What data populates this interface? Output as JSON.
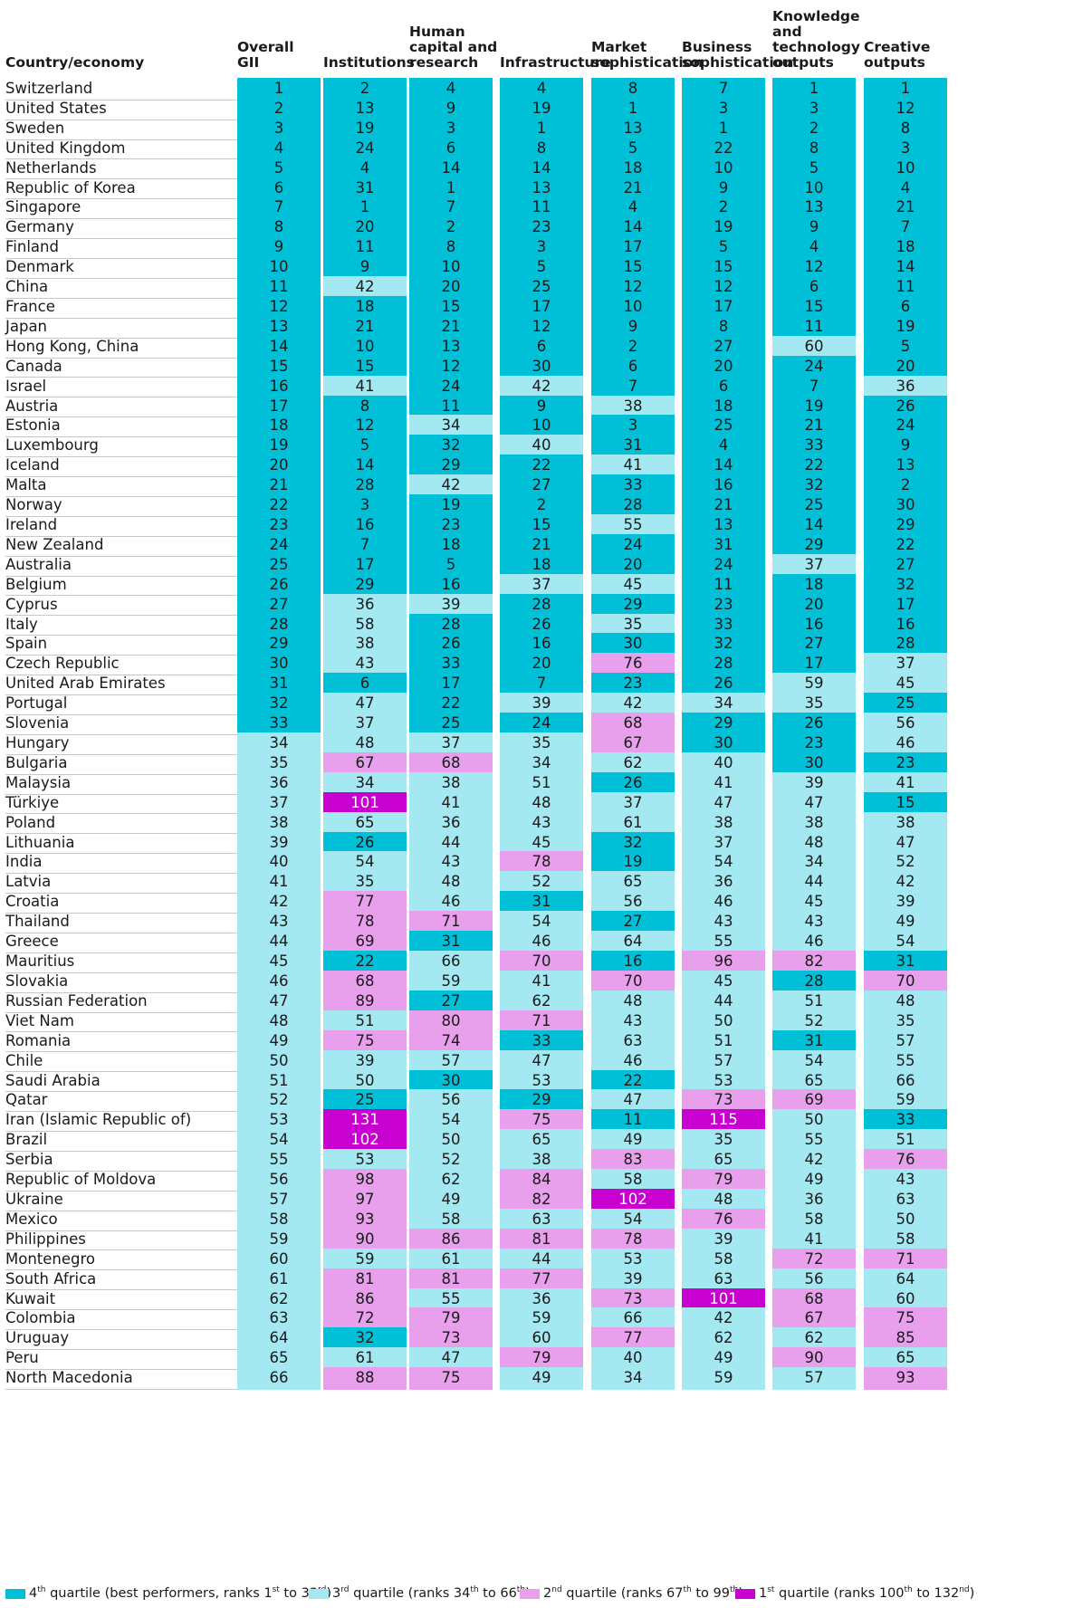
{
  "chart_data": {
    "type": "table",
    "columns": [
      "Country/economy",
      "Overall GII",
      "Institutions",
      "Human capital and research",
      "Infrastructure",
      "Market sophistication",
      "Business sophistication",
      "Knowledge and technology outputs",
      "Creative outputs"
    ],
    "header_lines": [
      [
        "Country/economy"
      ],
      [
        "Overall",
        "GII"
      ],
      [
        "Institutions"
      ],
      [
        "Human",
        "capital and",
        "research"
      ],
      [
        "Infrastructure"
      ],
      [
        "Market",
        "sophistication"
      ],
      [
        "Business",
        "sophistication"
      ],
      [
        "Knowledge",
        "and",
        "technology",
        "outputs"
      ],
      [
        "Creative",
        "outputs"
      ]
    ],
    "rows": [
      {
        "country": "Switzerland",
        "ranks": [
          1,
          2,
          4,
          4,
          8,
          7,
          1,
          1
        ]
      },
      {
        "country": "United States",
        "ranks": [
          2,
          13,
          9,
          19,
          1,
          3,
          3,
          12
        ]
      },
      {
        "country": "Sweden",
        "ranks": [
          3,
          19,
          3,
          1,
          13,
          1,
          2,
          8
        ]
      },
      {
        "country": "United Kingdom",
        "ranks": [
          4,
          24,
          6,
          8,
          5,
          22,
          8,
          3
        ]
      },
      {
        "country": "Netherlands",
        "ranks": [
          5,
          4,
          14,
          14,
          18,
          10,
          5,
          10
        ]
      },
      {
        "country": "Republic of Korea",
        "ranks": [
          6,
          31,
          1,
          13,
          21,
          9,
          10,
          4
        ]
      },
      {
        "country": "Singapore",
        "ranks": [
          7,
          1,
          7,
          11,
          4,
          2,
          13,
          21
        ]
      },
      {
        "country": "Germany",
        "ranks": [
          8,
          20,
          2,
          23,
          14,
          19,
          9,
          7
        ]
      },
      {
        "country": "Finland",
        "ranks": [
          9,
          11,
          8,
          3,
          17,
          5,
          4,
          18
        ]
      },
      {
        "country": "Denmark",
        "ranks": [
          10,
          9,
          10,
          5,
          15,
          15,
          12,
          14
        ]
      },
      {
        "country": "China",
        "ranks": [
          11,
          42,
          20,
          25,
          12,
          12,
          6,
          11
        ]
      },
      {
        "country": "France",
        "ranks": [
          12,
          18,
          15,
          17,
          10,
          17,
          15,
          6
        ]
      },
      {
        "country": "Japan",
        "ranks": [
          13,
          21,
          21,
          12,
          9,
          8,
          11,
          19
        ]
      },
      {
        "country": "Hong Kong, China",
        "ranks": [
          14,
          10,
          13,
          6,
          2,
          27,
          60,
          5
        ]
      },
      {
        "country": "Canada",
        "ranks": [
          15,
          15,
          12,
          30,
          6,
          20,
          24,
          20
        ]
      },
      {
        "country": "Israel",
        "ranks": [
          16,
          41,
          24,
          42,
          7,
          6,
          7,
          36
        ]
      },
      {
        "country": "Austria",
        "ranks": [
          17,
          8,
          11,
          9,
          38,
          18,
          19,
          26
        ]
      },
      {
        "country": "Estonia",
        "ranks": [
          18,
          12,
          34,
          10,
          3,
          25,
          21,
          24
        ]
      },
      {
        "country": "Luxembourg",
        "ranks": [
          19,
          5,
          32,
          40,
          31,
          4,
          33,
          9
        ]
      },
      {
        "country": "Iceland",
        "ranks": [
          20,
          14,
          29,
          22,
          41,
          14,
          22,
          13
        ]
      },
      {
        "country": "Malta",
        "ranks": [
          21,
          28,
          42,
          27,
          33,
          16,
          32,
          2
        ]
      },
      {
        "country": "Norway",
        "ranks": [
          22,
          3,
          19,
          2,
          28,
          21,
          25,
          30
        ]
      },
      {
        "country": "Ireland",
        "ranks": [
          23,
          16,
          23,
          15,
          55,
          13,
          14,
          29
        ]
      },
      {
        "country": "New Zealand",
        "ranks": [
          24,
          7,
          18,
          21,
          24,
          31,
          29,
          22
        ]
      },
      {
        "country": "Australia",
        "ranks": [
          25,
          17,
          5,
          18,
          20,
          24,
          37,
          27
        ]
      },
      {
        "country": "Belgium",
        "ranks": [
          26,
          29,
          16,
          37,
          45,
          11,
          18,
          32
        ]
      },
      {
        "country": "Cyprus",
        "ranks": [
          27,
          36,
          39,
          28,
          29,
          23,
          20,
          17
        ]
      },
      {
        "country": "Italy",
        "ranks": [
          28,
          58,
          28,
          26,
          35,
          33,
          16,
          16
        ]
      },
      {
        "country": "Spain",
        "ranks": [
          29,
          38,
          26,
          16,
          30,
          32,
          27,
          28
        ]
      },
      {
        "country": "Czech Republic",
        "ranks": [
          30,
          43,
          33,
          20,
          76,
          28,
          17,
          37
        ]
      },
      {
        "country": "United Arab Emirates",
        "ranks": [
          31,
          6,
          17,
          7,
          23,
          26,
          59,
          45
        ]
      },
      {
        "country": "Portugal",
        "ranks": [
          32,
          47,
          22,
          39,
          42,
          34,
          35,
          25
        ]
      },
      {
        "country": "Slovenia",
        "ranks": [
          33,
          37,
          25,
          24,
          68,
          29,
          26,
          56
        ]
      },
      {
        "country": "Hungary",
        "ranks": [
          34,
          48,
          37,
          35,
          67,
          30,
          23,
          46
        ]
      },
      {
        "country": "Bulgaria",
        "ranks": [
          35,
          67,
          68,
          34,
          62,
          40,
          30,
          23
        ]
      },
      {
        "country": "Malaysia",
        "ranks": [
          36,
          34,
          38,
          51,
          26,
          41,
          39,
          41
        ]
      },
      {
        "country": "Türkiye",
        "ranks": [
          37,
          101,
          41,
          48,
          37,
          47,
          47,
          15
        ]
      },
      {
        "country": "Poland",
        "ranks": [
          38,
          65,
          36,
          43,
          61,
          38,
          38,
          38
        ]
      },
      {
        "country": "Lithuania",
        "ranks": [
          39,
          26,
          44,
          45,
          32,
          37,
          48,
          47
        ]
      },
      {
        "country": "India",
        "ranks": [
          40,
          54,
          43,
          78,
          19,
          54,
          34,
          52
        ]
      },
      {
        "country": "Latvia",
        "ranks": [
          41,
          35,
          48,
          52,
          65,
          36,
          44,
          42
        ]
      },
      {
        "country": "Croatia",
        "ranks": [
          42,
          77,
          46,
          31,
          56,
          46,
          45,
          39
        ]
      },
      {
        "country": "Thailand",
        "ranks": [
          43,
          78,
          71,
          54,
          27,
          43,
          43,
          49
        ]
      },
      {
        "country": "Greece",
        "ranks": [
          44,
          69,
          31,
          46,
          64,
          55,
          46,
          54
        ]
      },
      {
        "country": "Mauritius",
        "ranks": [
          45,
          22,
          66,
          70,
          16,
          96,
          82,
          31
        ]
      },
      {
        "country": "Slovakia",
        "ranks": [
          46,
          68,
          59,
          41,
          70,
          45,
          28,
          70
        ]
      },
      {
        "country": "Russian Federation",
        "ranks": [
          47,
          89,
          27,
          62,
          48,
          44,
          51,
          48
        ]
      },
      {
        "country": "Viet Nam",
        "ranks": [
          48,
          51,
          80,
          71,
          43,
          50,
          52,
          35
        ]
      },
      {
        "country": "Romania",
        "ranks": [
          49,
          75,
          74,
          33,
          63,
          51,
          31,
          57
        ]
      },
      {
        "country": "Chile",
        "ranks": [
          50,
          39,
          57,
          47,
          46,
          57,
          54,
          55
        ]
      },
      {
        "country": "Saudi Arabia",
        "ranks": [
          51,
          50,
          30,
          53,
          22,
          53,
          65,
          66
        ]
      },
      {
        "country": "Qatar",
        "ranks": [
          52,
          25,
          56,
          29,
          47,
          73,
          69,
          59
        ]
      },
      {
        "country": "Iran (Islamic Republic of)",
        "ranks": [
          53,
          131,
          54,
          75,
          11,
          115,
          50,
          33
        ]
      },
      {
        "country": "Brazil",
        "ranks": [
          54,
          102,
          50,
          65,
          49,
          35,
          55,
          51
        ]
      },
      {
        "country": "Serbia",
        "ranks": [
          55,
          53,
          52,
          38,
          83,
          65,
          42,
          76
        ]
      },
      {
        "country": "Republic of Moldova",
        "ranks": [
          56,
          98,
          62,
          84,
          58,
          79,
          49,
          43
        ]
      },
      {
        "country": "Ukraine",
        "ranks": [
          57,
          97,
          49,
          82,
          102,
          48,
          36,
          63
        ]
      },
      {
        "country": "Mexico",
        "ranks": [
          58,
          93,
          58,
          63,
          54,
          76,
          58,
          50
        ]
      },
      {
        "country": "Philippines",
        "ranks": [
          59,
          90,
          86,
          81,
          78,
          39,
          41,
          58
        ]
      },
      {
        "country": "Montenegro",
        "ranks": [
          60,
          59,
          61,
          44,
          53,
          58,
          72,
          71
        ]
      },
      {
        "country": "South Africa",
        "ranks": [
          61,
          81,
          81,
          77,
          39,
          63,
          56,
          64
        ]
      },
      {
        "country": "Kuwait",
        "ranks": [
          62,
          86,
          55,
          36,
          73,
          101,
          68,
          60
        ]
      },
      {
        "country": "Colombia",
        "ranks": [
          63,
          72,
          79,
          59,
          66,
          42,
          67,
          75
        ]
      },
      {
        "country": "Uruguay",
        "ranks": [
          64,
          32,
          73,
          60,
          77,
          62,
          62,
          85
        ]
      },
      {
        "country": "Peru",
        "ranks": [
          65,
          61,
          47,
          79,
          40,
          49,
          90,
          65
        ]
      },
      {
        "country": "North Macedonia",
        "ranks": [
          66,
          88,
          75,
          49,
          34,
          59,
          57,
          93
        ]
      }
    ],
    "quartile_colors": {
      "q4": "#00c0d8",
      "q3": "#a4e8f2",
      "q2": "#e8a0ec",
      "q1": "#c800d0"
    },
    "legend": [
      {
        "key": "q4",
        "parts": [
          "4",
          "th",
          " quartile (best performers, ranks 1",
          "st",
          " to 33",
          "rd",
          ")"
        ]
      },
      {
        "key": "q3",
        "parts": [
          "3",
          "rd",
          " quartile (ranks 34",
          "th",
          " to 66",
          "th",
          ")"
        ]
      },
      {
        "key": "q2",
        "parts": [
          "2",
          "nd",
          " quartile (ranks 67",
          "th",
          " to 99",
          "th",
          ")"
        ]
      },
      {
        "key": "q1",
        "parts": [
          "1",
          "st",
          " quartile (ranks 100",
          "th",
          " to 132",
          "nd",
          ")"
        ]
      }
    ]
  }
}
